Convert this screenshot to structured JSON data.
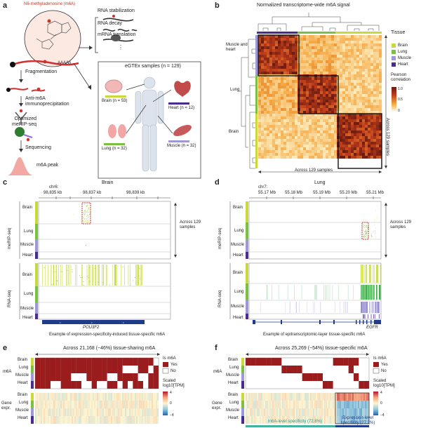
{
  "colors": {
    "brain": "#c9d93a",
    "lung": "#7ac143",
    "muscle": "#9f98d6",
    "heart": "#4a2b8f",
    "red": "#c0392b",
    "navy": "#1f3c8a"
  },
  "panel_a": {
    "label": "a",
    "molecule_title": "N6-methyladenosine (m6A)",
    "mrna_tail": "AAAAn",
    "outcomes": [
      "RNA stabilization",
      "RNA decay",
      "mRNA translation"
    ],
    "steps": [
      "Fragmentation",
      "Anti-m6A immunoprecipitation",
      "Optimized meRIP-seq",
      "Sequencing",
      "m6A peak"
    ],
    "gtex_title": "eGTEx samples (n = 129)",
    "tissues": [
      {
        "name": "Brain (n = 53)"
      },
      {
        "name": "Heart (n = 12)"
      },
      {
        "name": "Lung (n = 32)"
      },
      {
        "name": "Muscle (n = 32)"
      }
    ]
  },
  "panel_b": {
    "label": "b",
    "title": "Normalized transcriptome-wide m6A signal",
    "x_label": "Across 129 samples",
    "y_label": "Across 129 samples",
    "clusters": [
      "Muscle and heart",
      "Lung",
      "Brain"
    ],
    "legend_tissue_title": "Tissue",
    "legend_tissues": [
      "Brain",
      "Lung",
      "Muscle",
      "Heart"
    ],
    "legend_corr_title": "Pearson correlation",
    "legend_corr_ticks": [
      "1.0",
      "0.5",
      "0"
    ]
  },
  "panel_c": {
    "label": "c",
    "tissue_title": "Brain",
    "chrom": "chr6:",
    "coords": [
      "98,835 kb",
      "98,837 kb",
      "98,839 kb"
    ],
    "rows": [
      "Brain",
      "Lung",
      "Muscle",
      "Heart"
    ],
    "group_labels": [
      "meRIP-seq",
      "RNA-seq"
    ],
    "side_label": "Across 129 samples",
    "gene": "POU3F2",
    "caption": "Example of expression-specificity-induced tissue-specific m6A"
  },
  "panel_d": {
    "label": "d",
    "tissue_title": "Lung",
    "chrom": "chr7:",
    "coords": [
      "55.17 Mb",
      "55.18 Mb",
      "55.19 Mb",
      "55.20 Mb",
      "55.21 Mb"
    ],
    "rows": [
      "Brain",
      "Lung",
      "Muscle",
      "Heart"
    ],
    "group_labels": [
      "meRIP-seq",
      "RNA-seq"
    ],
    "side_label": "Across 129 samples",
    "gene": "EGFR",
    "caption": "Example of epitranscriptomic-layer tissue-specific m6A"
  },
  "panel_e": {
    "label": "e",
    "title": "Across 21,168 (~46%) tissue-sharing m6A",
    "m6a_label": "m6A",
    "expr_label": "Gene expr.",
    "rows": [
      "Brain",
      "Lung",
      "Muscle",
      "Heart"
    ],
    "legend_m6a_title": "Is m6A",
    "legend_yes": "Yes",
    "legend_no": "No",
    "legend_scale_title": "Scaled log10[TPM]",
    "legend_scale_ticks": [
      "4",
      "0",
      "−4"
    ]
  },
  "panel_f": {
    "label": "f",
    "title": "Across 25,269 (~54%) tissue-specific m6A",
    "m6a_label": "m6A",
    "expr_label": "Gene expr.",
    "rows": [
      "Brain",
      "Lung",
      "Muscle",
      "Heart"
    ],
    "legend_m6a_title": "Is m6A",
    "legend_yes": "Yes",
    "legend_no": "No",
    "legend_scale_title": "Scaled log10[TPM]",
    "legend_scale_ticks": [
      "4",
      "0",
      "−4"
    ],
    "spec1": "m6A-level specificity (72.8%)",
    "spec2": "Expression-level specificity (27.2%)"
  }
}
